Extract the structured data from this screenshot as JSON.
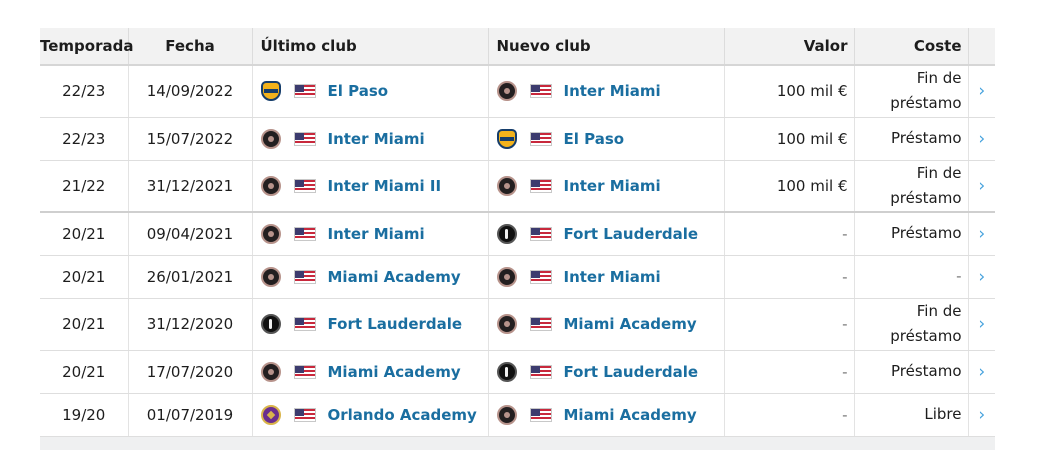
{
  "headers": {
    "season": "Temporada",
    "date": "Fecha",
    "from_club": "Último club",
    "to_club": "Nuevo club",
    "value": "Valor",
    "cost": "Coste"
  },
  "rows": [
    {
      "season": "22/23",
      "date": "14/09/2022",
      "from": {
        "name": "El Paso",
        "crest": "el-paso-crest-icon",
        "flag": "usa-flag-icon"
      },
      "to": {
        "name": "Inter Miami",
        "crest": "inter-miami-crest-icon",
        "flag": "usa-flag-icon"
      },
      "value": "100 mil €",
      "cost_line1": "Fin de",
      "cost_line2": "préstamo"
    },
    {
      "season": "22/23",
      "date": "15/07/2022",
      "from": {
        "name": "Inter Miami",
        "crest": "inter-miami-crest-icon",
        "flag": "usa-flag-icon"
      },
      "to": {
        "name": "El Paso",
        "crest": "el-paso-crest-icon",
        "flag": "usa-flag-icon"
      },
      "value": "100 mil €",
      "cost_line1": "Préstamo",
      "cost_line2": ""
    },
    {
      "season": "21/22",
      "date": "31/12/2021",
      "from": {
        "name": "Inter Miami II",
        "crest": "inter-miami-ii-crest-icon",
        "flag": "usa-flag-icon"
      },
      "to": {
        "name": "Inter Miami",
        "crest": "inter-miami-crest-icon",
        "flag": "usa-flag-icon"
      },
      "value": "100 mil €",
      "cost_line1": "Fin de",
      "cost_line2": "préstamo"
    },
    {
      "season": "20/21",
      "date": "09/04/2021",
      "from": {
        "name": "Inter Miami",
        "crest": "inter-miami-crest-icon",
        "flag": "usa-flag-icon"
      },
      "to": {
        "name": "Fort Lauderdale",
        "crest": "fort-lauderdale-crest-icon",
        "flag": "usa-flag-icon"
      },
      "value": "-",
      "cost_line1": "Préstamo",
      "cost_line2": ""
    },
    {
      "season": "20/21",
      "date": "26/01/2021",
      "from": {
        "name": "Miami Academy",
        "crest": "inter-miami-crest-icon",
        "flag": "usa-flag-icon"
      },
      "to": {
        "name": "Inter Miami",
        "crest": "inter-miami-crest-icon",
        "flag": "usa-flag-icon"
      },
      "value": "-",
      "cost_line1": "-",
      "cost_line2": ""
    },
    {
      "season": "20/21",
      "date": "31/12/2020",
      "from": {
        "name": "Fort Lauderdale",
        "crest": "fort-lauderdale-crest-icon",
        "flag": "usa-flag-icon"
      },
      "to": {
        "name": "Miami Academy",
        "crest": "inter-miami-crest-icon",
        "flag": "usa-flag-icon"
      },
      "value": "-",
      "cost_line1": "Fin de",
      "cost_line2": "préstamo"
    },
    {
      "season": "20/21",
      "date": "17/07/2020",
      "from": {
        "name": "Miami Academy",
        "crest": "inter-miami-crest-icon",
        "flag": "usa-flag-icon"
      },
      "to": {
        "name": "Fort Lauderdale",
        "crest": "fort-lauderdale-crest-icon",
        "flag": "usa-flag-icon"
      },
      "value": "-",
      "cost_line1": "Préstamo",
      "cost_line2": ""
    },
    {
      "season": "19/20",
      "date": "01/07/2019",
      "from": {
        "name": "Orlando Academy",
        "crest": "orlando-crest-icon",
        "flag": "usa-flag-icon"
      },
      "to": {
        "name": "Miami Academy",
        "crest": "inter-miami-crest-icon",
        "flag": "usa-flag-icon"
      },
      "value": "-",
      "cost_line1": "Libre",
      "cost_line2": ""
    }
  ],
  "row_action_icon": "chevron-right-icon",
  "colors": {
    "link": "#1a6ea0",
    "chevron": "#46a2dd",
    "header_bg": "#f2f2f2"
  }
}
